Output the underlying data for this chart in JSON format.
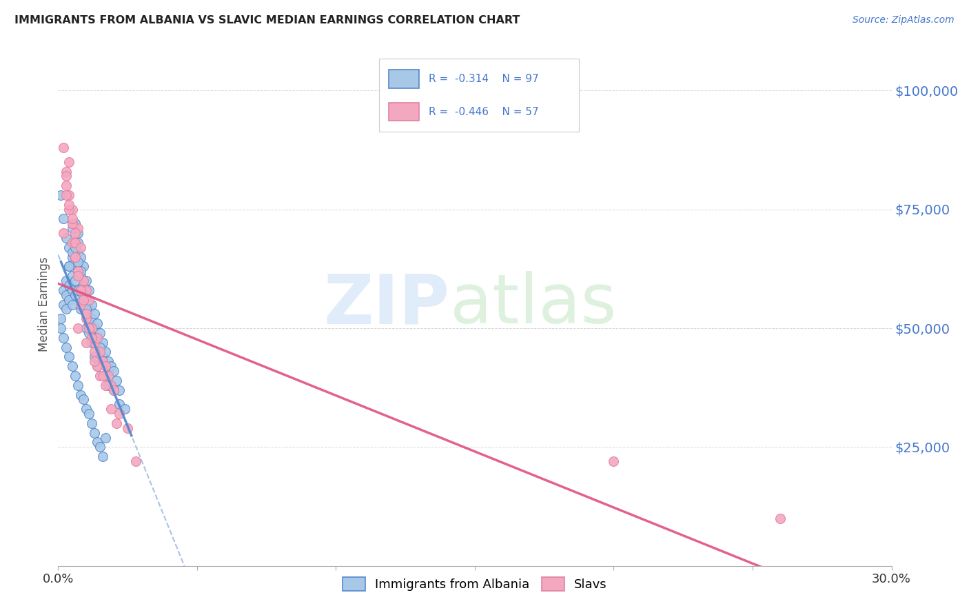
{
  "title": "IMMIGRANTS FROM ALBANIA VS SLAVIC MEDIAN EARNINGS CORRELATION CHART",
  "source": "Source: ZipAtlas.com",
  "ylabel": "Median Earnings",
  "yticks": [
    0,
    25000,
    50000,
    75000,
    100000
  ],
  "ytick_labels": [
    "",
    "$25,000",
    "$50,000",
    "$75,000",
    "$100,000"
  ],
  "xlim": [
    0.0,
    0.3
  ],
  "ylim": [
    0,
    110000
  ],
  "legend_albania": "Immigrants from Albania",
  "legend_slavs": "Slavs",
  "r_albania": "-0.314",
  "n_albania": "97",
  "r_slavs": "-0.446",
  "n_slavs": "57",
  "color_albania": "#a8c8e8",
  "color_slavs": "#f4a8c0",
  "color_line_albania": "#5588cc",
  "color_line_slavs": "#e05080",
  "color_axis_label": "#4477cc",
  "color_title": "#333333",
  "watermark_zip_color": "#ddeeff",
  "watermark_atlas_color": "#ddeedd",
  "albania_x": [
    0.001,
    0.002,
    0.002,
    0.003,
    0.003,
    0.003,
    0.004,
    0.004,
    0.004,
    0.005,
    0.005,
    0.005,
    0.005,
    0.006,
    0.006,
    0.006,
    0.006,
    0.007,
    0.007,
    0.007,
    0.007,
    0.008,
    0.008,
    0.008,
    0.008,
    0.009,
    0.009,
    0.009,
    0.01,
    0.01,
    0.01,
    0.01,
    0.011,
    0.011,
    0.011,
    0.012,
    0.012,
    0.012,
    0.013,
    0.013,
    0.013,
    0.014,
    0.014,
    0.015,
    0.015,
    0.016,
    0.016,
    0.017,
    0.018,
    0.018,
    0.019,
    0.02,
    0.021,
    0.022,
    0.001,
    0.002,
    0.003,
    0.004,
    0.004,
    0.005,
    0.005,
    0.006,
    0.006,
    0.007,
    0.007,
    0.008,
    0.008,
    0.009,
    0.01,
    0.011,
    0.012,
    0.013,
    0.014,
    0.015,
    0.016,
    0.017,
    0.018,
    0.02,
    0.022,
    0.024,
    0.001,
    0.002,
    0.003,
    0.004,
    0.005,
    0.006,
    0.007,
    0.008,
    0.009,
    0.01,
    0.011,
    0.012,
    0.013,
    0.014,
    0.015,
    0.016,
    0.017
  ],
  "albania_y": [
    52000,
    58000,
    55000,
    60000,
    57000,
    54000,
    63000,
    59000,
    56000,
    65000,
    61000,
    58000,
    55000,
    68000,
    64000,
    60000,
    57000,
    70000,
    66000,
    62000,
    58000,
    65000,
    61000,
    58000,
    54000,
    63000,
    59000,
    55000,
    60000,
    56000,
    53000,
    50000,
    58000,
    54000,
    51000,
    55000,
    52000,
    49000,
    53000,
    50000,
    47000,
    51000,
    48000,
    49000,
    46000,
    47000,
    44000,
    45000,
    43000,
    41000,
    42000,
    41000,
    39000,
    37000,
    78000,
    73000,
    69000,
    67000,
    63000,
    71000,
    66000,
    72000,
    67000,
    68000,
    64000,
    62000,
    58000,
    57000,
    54000,
    49000,
    47000,
    44000,
    42000,
    46000,
    43000,
    40000,
    38000,
    37000,
    34000,
    33000,
    50000,
    48000,
    46000,
    44000,
    42000,
    40000,
    38000,
    36000,
    35000,
    33000,
    32000,
    30000,
    28000,
    26000,
    25000,
    23000,
    27000
  ],
  "slavs_x": [
    0.002,
    0.003,
    0.003,
    0.004,
    0.004,
    0.005,
    0.005,
    0.005,
    0.006,
    0.006,
    0.007,
    0.007,
    0.008,
    0.008,
    0.009,
    0.01,
    0.01,
    0.011,
    0.012,
    0.013,
    0.014,
    0.015,
    0.016,
    0.017,
    0.018,
    0.019,
    0.02,
    0.022,
    0.025,
    0.028,
    0.002,
    0.003,
    0.004,
    0.005,
    0.006,
    0.007,
    0.008,
    0.009,
    0.01,
    0.011,
    0.012,
    0.013,
    0.014,
    0.015,
    0.017,
    0.019,
    0.021,
    0.007,
    0.01,
    0.013,
    0.016,
    0.003,
    0.004,
    0.005,
    0.006,
    0.2,
    0.26
  ],
  "slavs_y": [
    88000,
    83000,
    80000,
    85000,
    78000,
    72000,
    68000,
    75000,
    68000,
    65000,
    71000,
    62000,
    67000,
    55000,
    60000,
    58000,
    52000,
    56000,
    50000,
    47000,
    48000,
    45000,
    43000,
    42000,
    40000,
    38000,
    37000,
    32000,
    29000,
    22000,
    70000,
    82000,
    75000,
    72000,
    65000,
    61000,
    58000,
    56000,
    53000,
    50000,
    48000,
    45000,
    42000,
    40000,
    38000,
    33000,
    30000,
    50000,
    47000,
    43000,
    40000,
    78000,
    76000,
    73000,
    70000,
    22000,
    10000
  ],
  "xtick_positions": [
    0.0,
    0.05,
    0.1,
    0.15,
    0.2,
    0.25,
    0.3
  ],
  "xtick_labels_show": [
    "0.0%",
    "",
    "",
    "",
    "",
    "",
    "30.0%"
  ]
}
